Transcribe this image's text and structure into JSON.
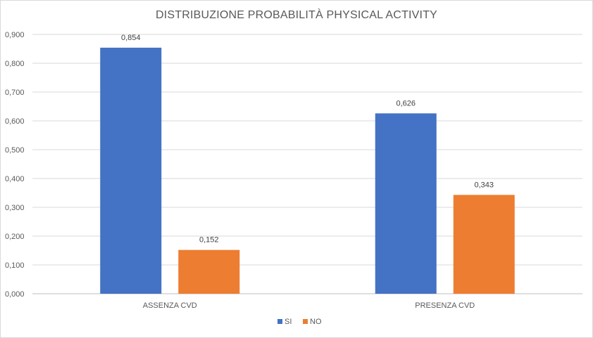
{
  "chart_data": {
    "type": "bar",
    "title": "DISTRIBUZIONE PROBABILITÀ PHYSICAL ACTIVITY",
    "categories": [
      "ASSENZA CVD",
      "PRESENZA CVD"
    ],
    "series": [
      {
        "name": "SI",
        "values": [
          0.854,
          0.626
        ],
        "color": "#4472c4"
      },
      {
        "name": "NO",
        "values": [
          0.152,
          0.343
        ],
        "color": "#ed7d31"
      }
    ],
    "data_labels": [
      [
        "0,854",
        "0,626"
      ],
      [
        "0,152",
        "0,343"
      ]
    ],
    "yticks": [
      "0,000",
      "0,100",
      "0,200",
      "0,300",
      "0,400",
      "0,500",
      "0,600",
      "0,700",
      "0,800",
      "0,900"
    ],
    "ylim": [
      0,
      0.9
    ],
    "grid": true,
    "legend_position": "bottom",
    "xlabel": "",
    "ylabel": ""
  }
}
